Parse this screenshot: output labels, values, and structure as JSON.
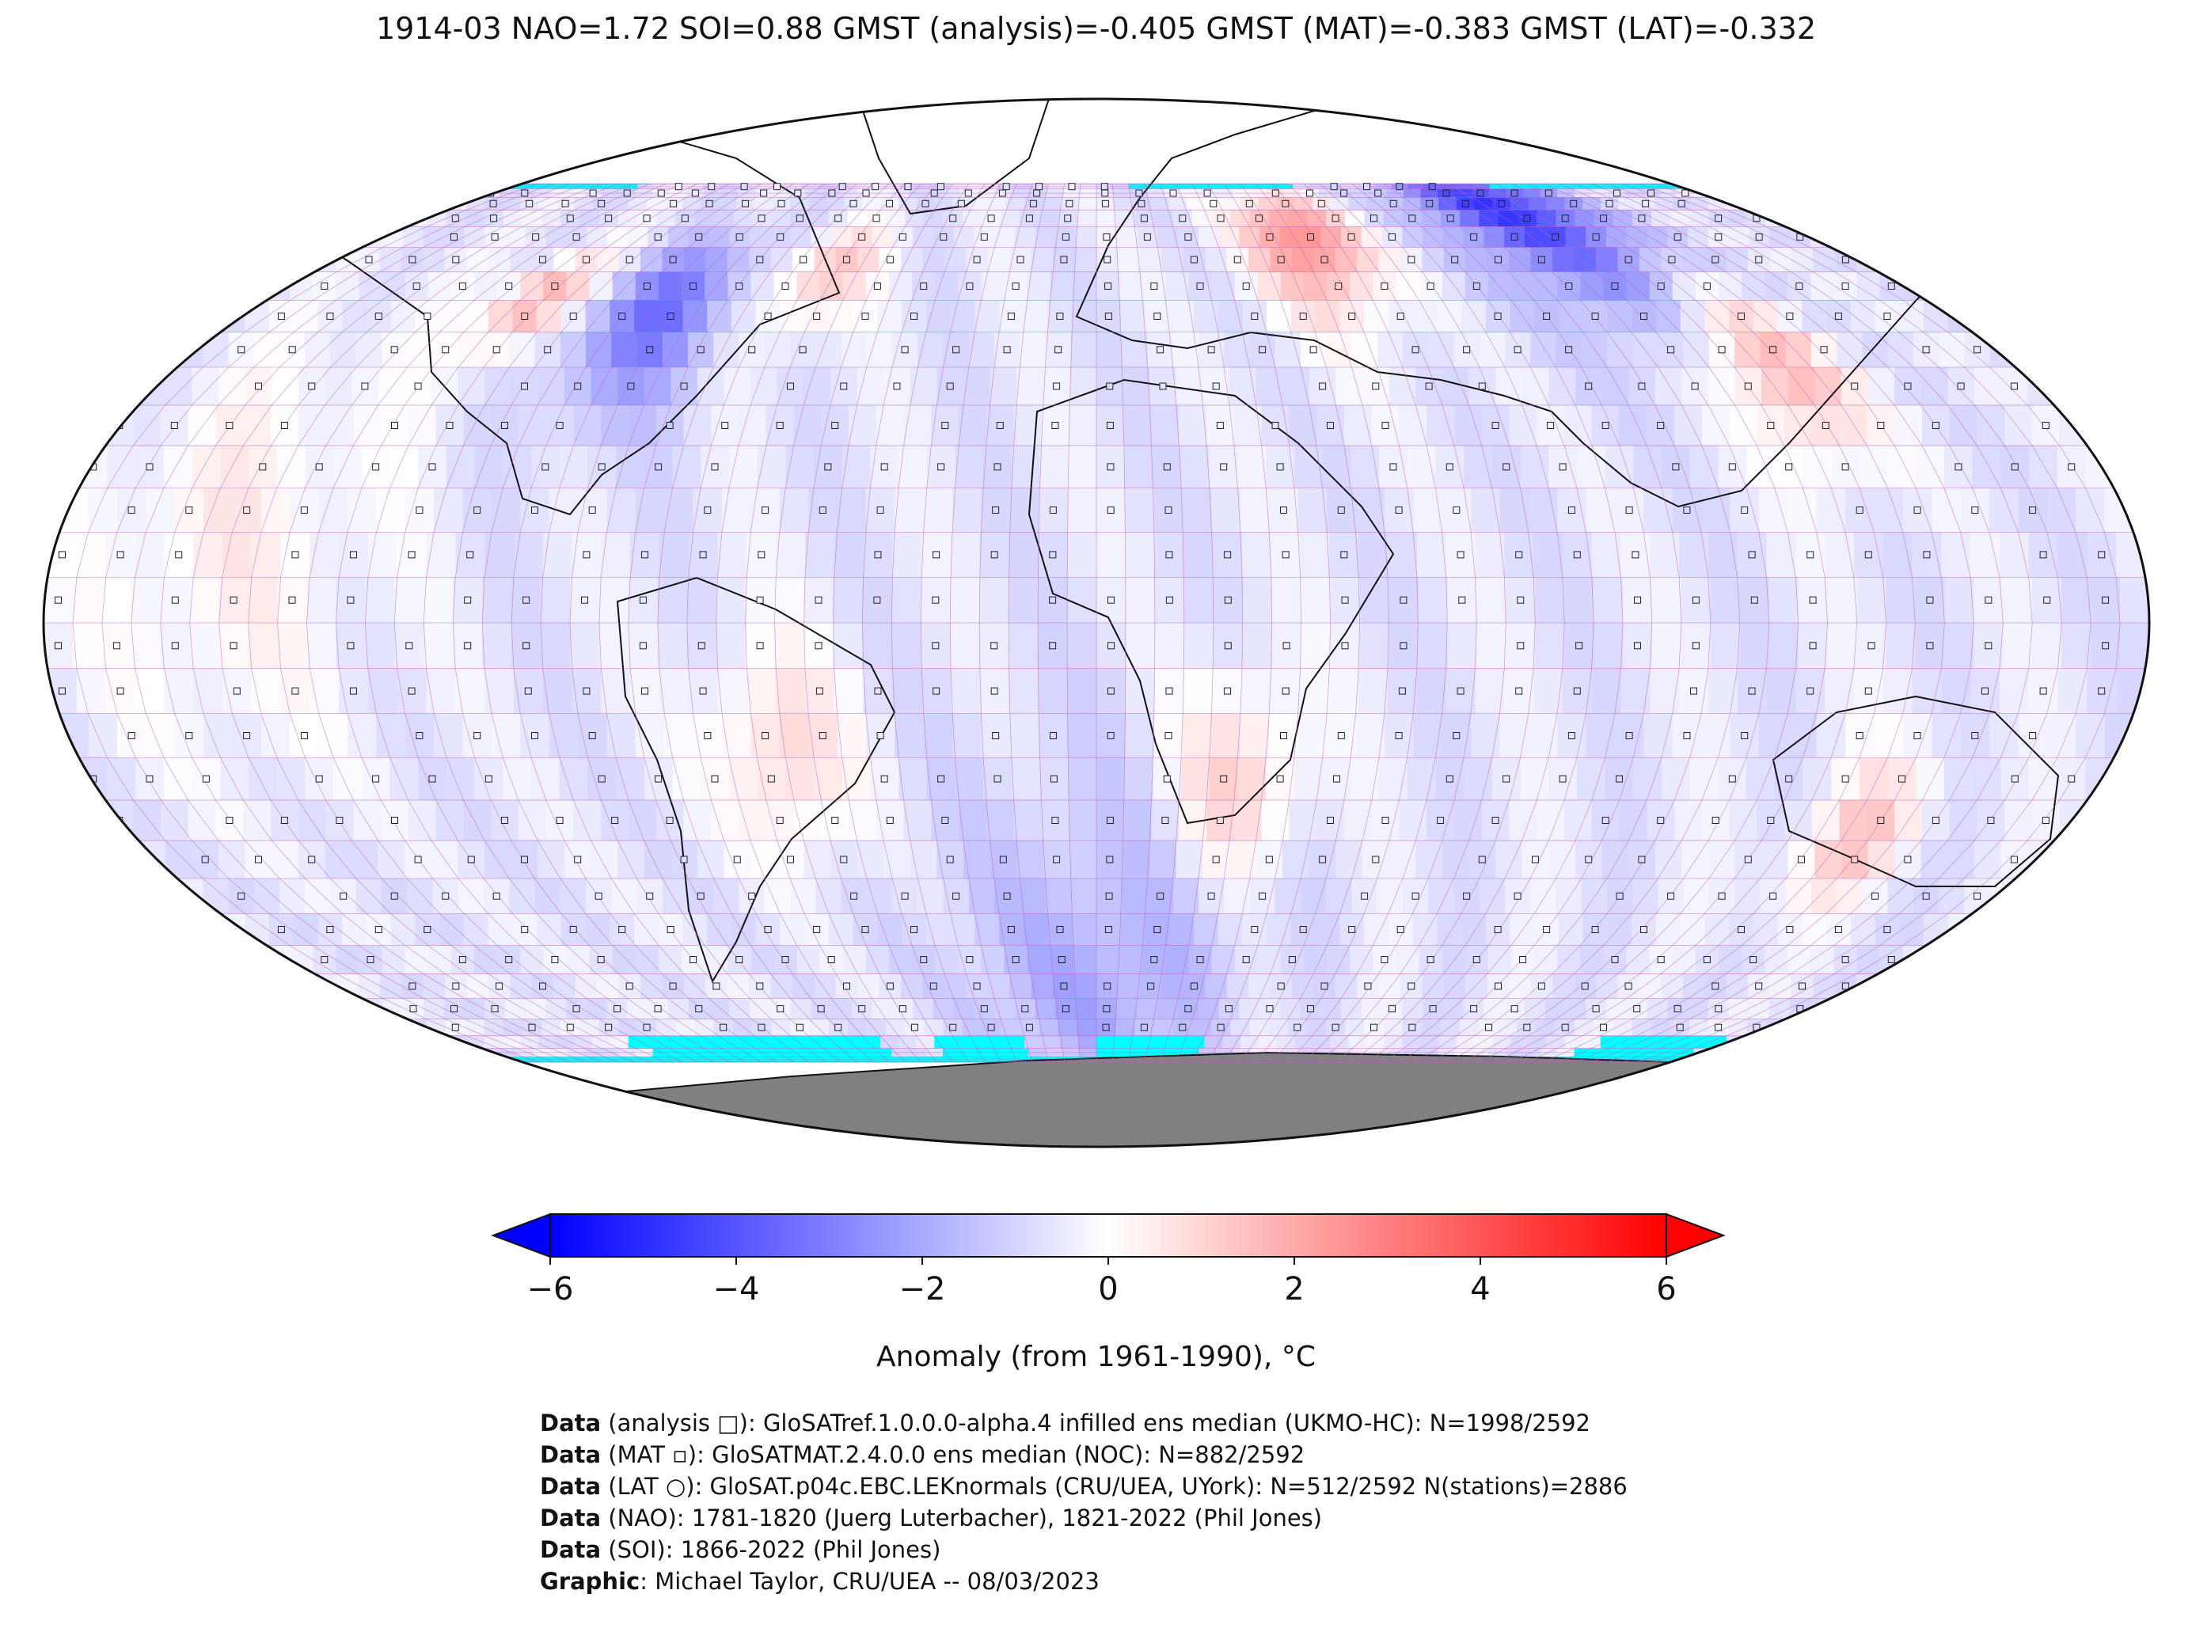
{
  "title": "1914-03 NAO=1.72 SOI=0.88 GMST (analysis)=-0.405 GMST (MAT)=-0.383 GMST (LAT)=-0.332",
  "colorbar": {
    "label": "Anomaly (from 1961-1990), °C",
    "min": -6,
    "max": 6,
    "ticks": [
      "−6",
      "−4",
      "−2",
      "0",
      "2",
      "4",
      "6"
    ],
    "colors": {
      "cold": "#0000ff",
      "neutral": "#ffffff",
      "warm": "#ff0000"
    }
  },
  "map": {
    "projection": "Robinson",
    "sea_ice_color": "#00ffff",
    "land_ice_color": "#808080",
    "grid_line_color": "#c060c0"
  },
  "footer": [
    {
      "key": "Data",
      "text": " (analysis □): GloSATref.1.0.0.0-alpha.4 infilled ens median (UKMO-HC): N=1998/2592"
    },
    {
      "key": "Data",
      "text": " (MAT ▫): GloSATMAT.2.4.0.0 ens median (NOC): N=882/2592"
    },
    {
      "key": "Data",
      "text": " (LAT ○): GloSAT.p04c.EBC.LEKnormals (CRU/UEA, UYork): N=512/2592 N(stations)=2886"
    },
    {
      "key": "Data",
      "text": " (NAO): 1781-1820 (Juerg Luterbacher), 1821-2022 (Phil Jones)"
    },
    {
      "key": "Data",
      "text": " (SOI): 1866-2022 (Phil Jones)"
    },
    {
      "key": "Graphic",
      "text": ": Michael Taylor, CRU/UEA -- 08/03/2023"
    }
  ]
}
